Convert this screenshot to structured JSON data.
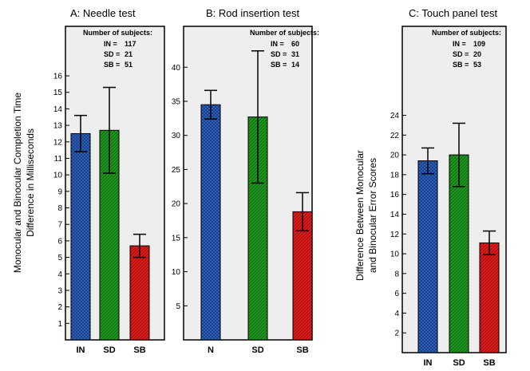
{
  "colors": {
    "IN": "#2f67c9",
    "N": "#2f67c9",
    "SD": "#1f9a1f",
    "SB": "#e11b1b",
    "plot_bg": "#eeeeee"
  },
  "chart_data": [
    {
      "type": "bar",
      "title": "A: Needle test",
      "ylabel_lines": [
        "Monocular and Binocular Completion Time",
        "Difference in Milliseconds"
      ],
      "categories": [
        "IN",
        "SD",
        "SB"
      ],
      "values": [
        12.5,
        12.7,
        5.7
      ],
      "errors": [
        1.1,
        2.6,
        0.7
      ],
      "ylim": [
        0,
        19
      ],
      "yticks": [
        1,
        2,
        3,
        4,
        5,
        6,
        7,
        8,
        9,
        10,
        11,
        12,
        13,
        14,
        15,
        16
      ],
      "subjects_header": "Number of subjects:",
      "subjects": [
        {
          "label": "IN",
          "value": "117"
        },
        {
          "label": "SD",
          "value": "21"
        },
        {
          "label": "SB",
          "value": "51"
        }
      ]
    },
    {
      "type": "bar",
      "title": "B: Rod insertion test",
      "ylabel_lines": [],
      "categories": [
        "N",
        "SD",
        "SB"
      ],
      "values": [
        34.5,
        32.7,
        18.8
      ],
      "errors": [
        2.1,
        9.7,
        2.8
      ],
      "ylim": [
        0,
        46
      ],
      "yticks": [
        5,
        10,
        15,
        20,
        25,
        30,
        35,
        40
      ],
      "subjects_header": "Number of subjects:",
      "subjects": [
        {
          "label": "IN",
          "value": "60"
        },
        {
          "label": "SD",
          "value": "31"
        },
        {
          "label": "SB",
          "value": "14"
        }
      ]
    },
    {
      "type": "bar",
      "title": "C:  Touch panel test",
      "ylabel_lines": [
        "Difference Between Monocular",
        "and Binocular Error Scores"
      ],
      "categories": [
        "IN",
        "SD",
        "SB"
      ],
      "values": [
        19.4,
        20.0,
        11.1
      ],
      "errors": [
        1.3,
        3.2,
        1.2
      ],
      "ylim": [
        0,
        33
      ],
      "yticks": [
        2,
        4,
        6,
        8,
        10,
        12,
        14,
        16,
        18,
        20,
        22,
        24
      ],
      "subjects_header": "Number of subjects:",
      "subjects": [
        {
          "label": "IN",
          "value": "109"
        },
        {
          "label": "SD",
          "value": "20"
        },
        {
          "label": "SB",
          "value": "53"
        }
      ]
    }
  ]
}
